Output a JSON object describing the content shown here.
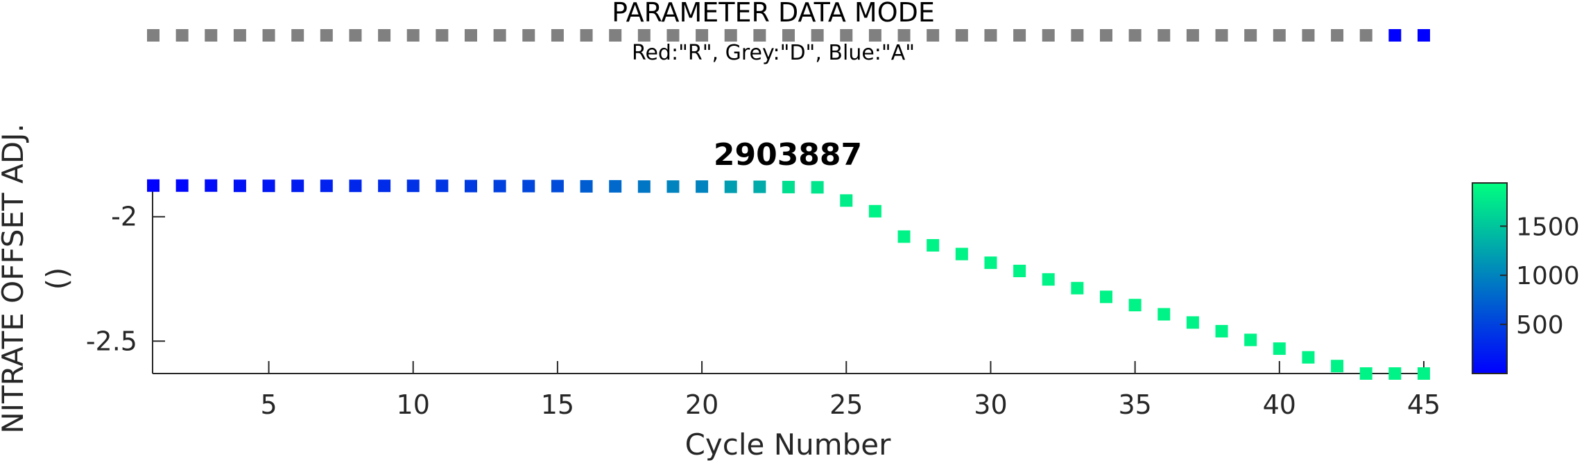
{
  "mode_strip": {
    "title": "PARAMETER DATA MODE",
    "legend": "Red:\"R\", Grey:\"D\", Blue:\"A\"",
    "colors": {
      "R": "#ff0000",
      "D": "#808080",
      "A": "#0000ff"
    },
    "modes": [
      "D",
      "D",
      "D",
      "D",
      "D",
      "D",
      "D",
      "D",
      "D",
      "D",
      "D",
      "D",
      "D",
      "D",
      "D",
      "D",
      "D",
      "D",
      "D",
      "D",
      "D",
      "D",
      "D",
      "D",
      "D",
      "D",
      "D",
      "D",
      "D",
      "D",
      "D",
      "D",
      "D",
      "D",
      "D",
      "D",
      "D",
      "D",
      "D",
      "D",
      "D",
      "D",
      "D",
      "A",
      "A"
    ]
  },
  "chart_data": {
    "type": "scatter",
    "title": "2903887",
    "xlabel": "Cycle Number",
    "ylabel_lines": [
      "NITRATE OFFSET ADJ.",
      "()"
    ],
    "xlim": [
      1,
      45
    ],
    "ylim": [
      -2.63,
      -1.87
    ],
    "xticks": [
      5,
      10,
      15,
      20,
      25,
      30,
      35,
      40,
      45
    ],
    "yticks": [
      -2,
      -2.5
    ],
    "ytick_labels": [
      "-2",
      "-2.5"
    ],
    "grid": false,
    "x": [
      1,
      2,
      3,
      4,
      5,
      6,
      7,
      8,
      9,
      10,
      11,
      12,
      13,
      14,
      15,
      16,
      17,
      18,
      19,
      20,
      21,
      22,
      23,
      24,
      25,
      26,
      27,
      28,
      29,
      30,
      31,
      32,
      33,
      34,
      35,
      36,
      37,
      38,
      39,
      40,
      41,
      42,
      43,
      44,
      45
    ],
    "y": [
      -1.875,
      -1.875,
      -1.875,
      -1.876,
      -1.876,
      -1.876,
      -1.876,
      -1.876,
      -1.876,
      -1.876,
      -1.876,
      -1.877,
      -1.877,
      -1.877,
      -1.877,
      -1.878,
      -1.878,
      -1.879,
      -1.879,
      -1.879,
      -1.88,
      -1.88,
      -1.881,
      -1.882,
      -1.935,
      -1.978,
      -2.08,
      -2.115,
      -2.15,
      -2.185,
      -2.218,
      -2.252,
      -2.287,
      -2.322,
      -2.355,
      -2.392,
      -2.425,
      -2.46,
      -2.495,
      -2.53,
      -2.565,
      -2.6,
      -2.63,
      -2.63,
      -2.63
    ],
    "color_values": [
      10,
      50,
      90,
      130,
      170,
      210,
      250,
      290,
      330,
      370,
      410,
      450,
      490,
      530,
      570,
      700,
      800,
      900,
      1000,
      1000,
      1200,
      1300,
      1700,
      1750,
      1800,
      1850,
      1850,
      1850,
      1850,
      1850,
      1850,
      1850,
      1850,
      1850,
      1850,
      1850,
      1850,
      1850,
      1850,
      1850,
      1850,
      1850,
      1850,
      1850,
      1850
    ],
    "colorbar": {
      "range": [
        0,
        1940
      ],
      "ticks": [
        500,
        1000,
        1500
      ],
      "tick_labels": [
        "500",
        "1000",
        "1500"
      ],
      "colormap": [
        "#0000ff",
        "#00ff80"
      ]
    }
  }
}
